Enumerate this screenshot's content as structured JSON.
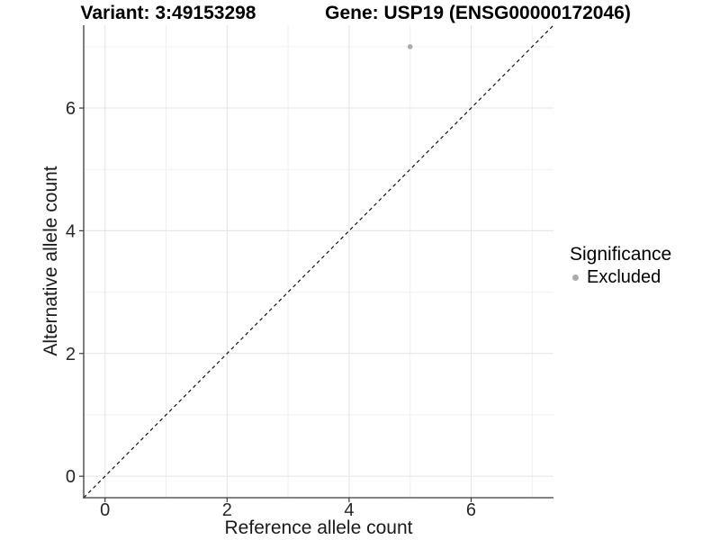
{
  "header": {
    "variant_title": "Variant: 3:49153298",
    "gene_title": "Gene: USP19 (ENSG00000172046)"
  },
  "legend": {
    "title": "Significance",
    "items": [
      {
        "label": "Excluded",
        "color": "#ababab"
      }
    ]
  },
  "chart_data": {
    "type": "scatter",
    "title": "Variant: 3:49153298 / Gene: USP19 (ENSG00000172046)",
    "xlabel": "Reference allele count",
    "ylabel": "Alternative allele count",
    "xlim": [
      -0.35,
      7.35
    ],
    "ylim": [
      -0.35,
      7.35
    ],
    "xticks": [
      0,
      2,
      4,
      6
    ],
    "yticks": [
      0,
      2,
      4,
      6
    ],
    "xgrid_minor": [
      1,
      3,
      5,
      7
    ],
    "ygrid_minor": [
      1,
      3,
      5,
      7
    ],
    "grid": true,
    "legend_position": "right",
    "series": [
      {
        "name": "Excluded",
        "color": "#ababab",
        "points": [
          {
            "x": 5,
            "y": 7
          }
        ]
      }
    ],
    "reference_line": {
      "type": "identity",
      "style": "dashed",
      "color": "#111111",
      "from": [
        -0.35,
        -0.35
      ],
      "to": [
        7.35,
        7.35
      ]
    },
    "colors": {
      "grid_major": "#e3e3e3",
      "grid_minor": "#f0f0f0",
      "axis": "#3a3a3a",
      "tick_label": "#262626"
    }
  }
}
